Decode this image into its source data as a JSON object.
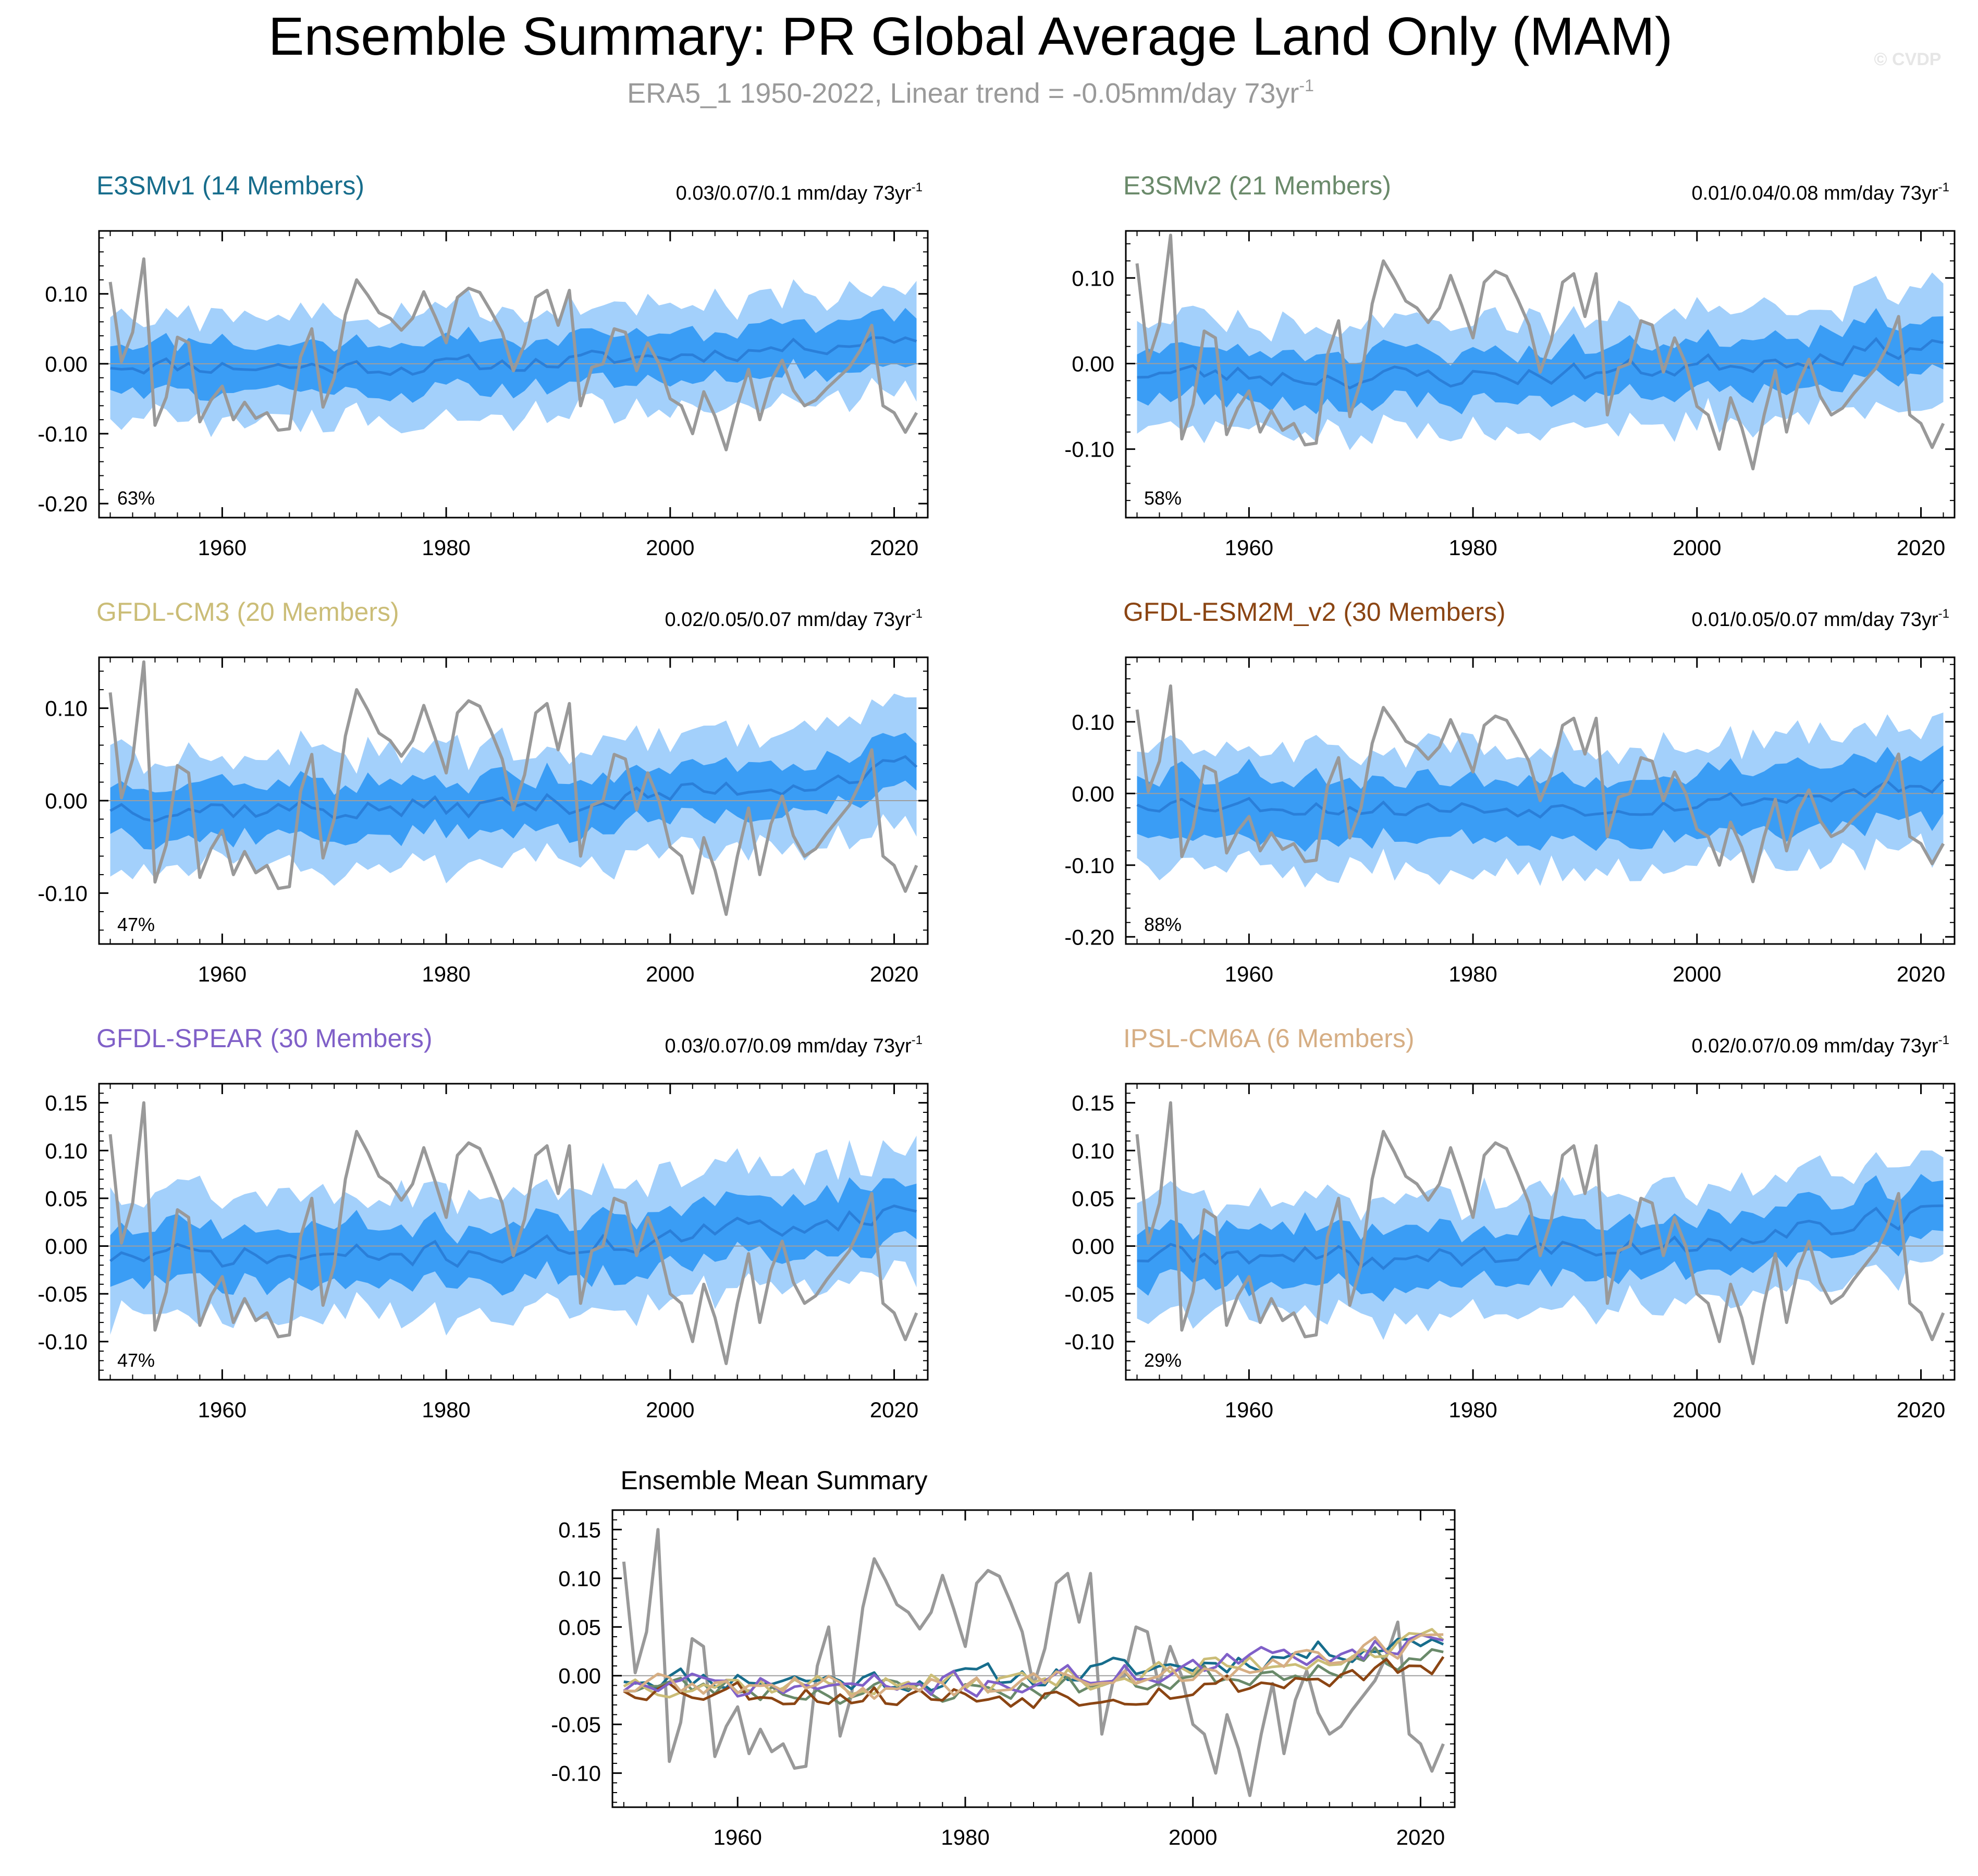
{
  "figure": {
    "title": "Ensemble Summary: PR Global Average Land Only (MAM)",
    "subtitle_text": "ERA5_1 1950-2022, Linear trend = -0.05mm/day 73yr",
    "subtitle_sup": "-1",
    "watermark": "© CVDP"
  },
  "colors": {
    "outer_band": "#a3d0fb",
    "inner_band": "#3a9df5",
    "ens_mean": "#2a7fd9",
    "observed": "#999999",
    "zero_line": "#9e9e9e",
    "E3SMv1": "#176d8c",
    "E3SMv2": "#6a8a6a",
    "GFDL-CM3": "#cbbd77",
    "GFDL-ESM2M_v2": "#8b4513",
    "GFDL-SPEAR": "#8060c8",
    "IPSL-CM6A": "#d6ae84"
  },
  "chart_data": [
    {
      "type": "area",
      "title": "E3SMv1 (14 Members)",
      "title_color": "#176d8c",
      "trend_text": "0.03/0.07/0.1 mm/day 73yr",
      "trend_sup": "-1",
      "percent_label": "63%",
      "xlim": [
        1949,
        2023
      ],
      "ylim": [
        -0.22,
        0.19
      ],
      "yticks": [
        0.1,
        0.0,
        -0.1,
        -0.2
      ],
      "ytick_labels": [
        "0.10",
        "0.00",
        "-0.10",
        "-0.20"
      ],
      "xticks": [
        1960,
        1980,
        2000,
        2020
      ],
      "xtick_labels": [
        "1960",
        "1980",
        "2000",
        "2020"
      ],
      "mean_trend": [
        0.01,
        0.05
      ],
      "spread": [
        0.035,
        0.075
      ],
      "seed": 11
    },
    {
      "type": "area",
      "title": "E3SMv2 (21 Members)",
      "title_color": "#6a8a6a",
      "trend_text": "0.01/0.04/0.08 mm/day 73yr",
      "trend_sup": "-1",
      "percent_label": "58%",
      "xlim": [
        1949,
        2023
      ],
      "ylim": [
        -0.18,
        0.155
      ],
      "yticks": [
        0.1,
        0.0,
        -0.1
      ],
      "ytick_labels": [
        "0.10",
        "0.00",
        "-0.10"
      ],
      "xticks": [
        1960,
        1980,
        2000,
        2020
      ],
      "xtick_labels": [
        "1960",
        "1980",
        "2000",
        "2020"
      ],
      "mean_trend": [
        0.0,
        0.035
      ],
      "spread": [
        0.03,
        0.065
      ],
      "seed": 23
    },
    {
      "type": "area",
      "title": "GFDL-CM3 (20 Members)",
      "title_color": "#cbbd77",
      "trend_text": "0.02/0.05/0.07 mm/day 73yr",
      "trend_sup": "-1",
      "percent_label": "47%",
      "xlim": [
        1949,
        2023
      ],
      "ylim": [
        -0.155,
        0.155
      ],
      "yticks": [
        0.1,
        0.0,
        -0.1
      ],
      "ytick_labels": [
        "0.10",
        "0.00",
        "-0.10"
      ],
      "xticks": [
        1960,
        1980,
        2000,
        2020
      ],
      "xtick_labels": [
        "1960",
        "1980",
        "2000",
        "2020"
      ],
      "mean_trend": [
        0.005,
        0.045
      ],
      "spread": [
        0.028,
        0.062
      ],
      "seed": 37
    },
    {
      "type": "area",
      "title": "GFDL-ESM2M_v2 (30 Members)",
      "title_color": "#8b4513",
      "trend_text": "0.01/0.05/0.07 mm/day 73yr",
      "trend_sup": "-1",
      "percent_label": "88%",
      "xlim": [
        1949,
        2023
      ],
      "ylim": [
        -0.21,
        0.19
      ],
      "yticks": [
        0.1,
        0.0,
        -0.1,
        -0.2
      ],
      "ytick_labels": [
        "0.10",
        "0.00",
        "-0.10",
        "-0.20"
      ],
      "xticks": [
        1960,
        1980,
        2000,
        2020
      ],
      "xtick_labels": [
        "1960",
        "1980",
        "2000",
        "2020"
      ],
      "mean_trend": [
        0.0,
        0.02
      ],
      "spread": [
        0.045,
        0.085
      ],
      "seed": 53
    },
    {
      "type": "area",
      "title": "GFDL-SPEAR (30 Members)",
      "title_color": "#8060c8",
      "trend_text": "0.03/0.07/0.09 mm/day 73yr",
      "trend_sup": "-1",
      "percent_label": "47%",
      "xlim": [
        1949,
        2023
      ],
      "ylim": [
        -0.14,
        0.17
      ],
      "yticks": [
        0.15,
        0.1,
        0.05,
        0.0,
        -0.05,
        -0.1
      ],
      "ytick_labels": [
        "0.15",
        "0.10",
        "0.05",
        "0.00",
        "-0.05",
        "-0.10"
      ],
      "xticks": [
        1960,
        1980,
        2000,
        2020
      ],
      "xtick_labels": [
        "1960",
        "1980",
        "2000",
        "2020"
      ],
      "mean_trend": [
        0.0,
        0.05
      ],
      "spread": [
        0.03,
        0.065
      ],
      "seed": 71
    },
    {
      "type": "area",
      "title": "IPSL-CM6A (6 Members)",
      "title_color": "#d6ae84",
      "trend_text": "0.02/0.07/0.09 mm/day 73yr",
      "trend_sup": "-1",
      "percent_label": "29%",
      "xlim": [
        1949,
        2023
      ],
      "ylim": [
        -0.14,
        0.17
      ],
      "yticks": [
        0.15,
        0.1,
        0.05,
        0.0,
        -0.05,
        -0.1
      ],
      "ytick_labels": [
        "0.15",
        "0.10",
        "0.05",
        "0.00",
        "-0.05",
        "-0.10"
      ],
      "xticks": [
        1960,
        1980,
        2000,
        2020
      ],
      "xtick_labels": [
        "1960",
        "1980",
        "2000",
        "2020"
      ],
      "mean_trend": [
        0.0,
        0.045
      ],
      "spread": [
        0.03,
        0.06
      ],
      "seed": 89
    },
    {
      "type": "line",
      "title": "Ensemble Mean Summary",
      "xlim": [
        1949,
        2023
      ],
      "ylim": [
        -0.135,
        0.17
      ],
      "yticks": [
        0.15,
        0.1,
        0.05,
        0.0,
        -0.05,
        -0.1
      ],
      "ytick_labels": [
        "0.15",
        "0.10",
        "0.05",
        "0.00",
        "-0.05",
        "-0.10"
      ],
      "xticks": [
        1960,
        1980,
        2000,
        2020
      ],
      "xtick_labels": [
        "1960",
        "1980",
        "2000",
        "2020"
      ],
      "series_names": [
        "E3SMv1",
        "E3SMv2",
        "GFDL-CM3",
        "GFDL-ESM2M_v2",
        "GFDL-SPEAR",
        "IPSL-CM6A"
      ]
    }
  ],
  "observed": {
    "name": "ERA5_1",
    "start_year": 1950,
    "values": [
      0.117,
      0.003,
      0.045,
      0.15,
      -0.088,
      -0.048,
      0.038,
      0.03,
      -0.083,
      -0.052,
      -0.032,
      -0.08,
      -0.055,
      -0.078,
      -0.07,
      -0.095,
      -0.093,
      0.01,
      0.05,
      -0.062,
      -0.02,
      0.07,
      0.12,
      0.098,
      0.073,
      0.065,
      0.048,
      0.065,
      0.103,
      0.068,
      0.03,
      0.095,
      0.108,
      0.102,
      0.075,
      0.045,
      -0.01,
      0.028,
      0.095,
      0.105,
      0.055,
      0.105,
      -0.06,
      -0.005,
      0.0,
      0.05,
      0.045,
      -0.01,
      0.03,
      0.0,
      -0.05,
      -0.06,
      -0.1,
      -0.04,
      -0.075,
      -0.123,
      -0.06,
      -0.008,
      -0.08,
      -0.025,
      0.005,
      -0.038,
      -0.06,
      -0.052,
      -0.035,
      -0.02,
      -0.005,
      0.02,
      0.055,
      -0.06,
      -0.07,
      -0.098,
      -0.07
    ]
  }
}
